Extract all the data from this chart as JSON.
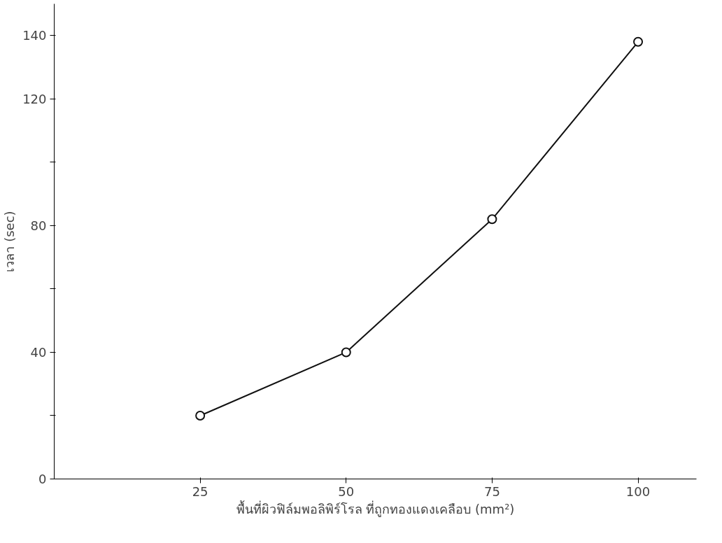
{
  "chart_data": {
    "type": "line",
    "xlabel": "พื้นที่ผิวฟิล์มพอลิพิร์โรล ที่ถูกทองแดงเคลือบ (mm²)",
    "ylabel": "เวลา (sec)",
    "x": [
      25,
      50,
      75,
      100
    ],
    "series": [
      {
        "color": "#111111",
        "values": [
          20,
          40,
          82,
          138
        ]
      }
    ],
    "xlim": [
      0,
      110
    ],
    "xticks": [
      25,
      50,
      75,
      100
    ],
    "ylim": [
      0,
      150
    ],
    "yticks": [
      0,
      {
        "value": 20,
        "label": null
      },
      40,
      {
        "value": 60,
        "label": null
      },
      80,
      {
        "value": 100,
        "label": null
      },
      120,
      140
    ],
    "marker": "circle",
    "line_style": "solid",
    "grid": false
  }
}
